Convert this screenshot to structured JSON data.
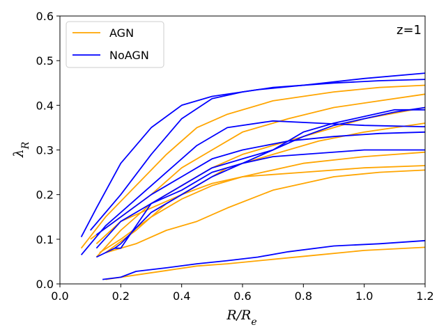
{
  "chart_data": {
    "type": "line",
    "title": "",
    "xlabel": "R/R_e",
    "ylabel": "λ_R",
    "xlim": [
      0.0,
      1.2
    ],
    "ylim": [
      0.0,
      0.6
    ],
    "xticks": [
      0.0,
      0.2,
      0.4,
      0.6,
      0.8,
      1.0,
      1.2
    ],
    "yticks": [
      0.0,
      0.1,
      0.2,
      0.3,
      0.4,
      0.5,
      0.6
    ],
    "xtick_labels": [
      "0.0",
      "0.2",
      "0.4",
      "0.6",
      "0.8",
      "1.0",
      "1.2"
    ],
    "ytick_labels": [
      "0.0",
      "0.1",
      "0.2",
      "0.3",
      "0.4",
      "0.5",
      "0.6"
    ],
    "annotation": "z=1",
    "legend": [
      {
        "label": "AGN",
        "color": "#FFA500"
      },
      {
        "label": "NoAGN",
        "color": "#0000FF"
      }
    ],
    "series": [
      {
        "name": "AGN",
        "color": "#FFA500",
        "x": [
          0.07,
          0.15,
          0.25,
          0.35,
          0.45,
          0.55,
          0.7,
          0.9,
          1.05,
          1.2
        ],
        "y": [
          0.08,
          0.15,
          0.22,
          0.29,
          0.35,
          0.38,
          0.41,
          0.43,
          0.44,
          0.445
        ]
      },
      {
        "name": "AGN",
        "color": "#FFA500",
        "x": [
          0.1,
          0.2,
          0.3,
          0.4,
          0.5,
          0.6,
          0.75,
          0.9,
          1.05,
          1.2
        ],
        "y": [
          0.1,
          0.15,
          0.2,
          0.26,
          0.3,
          0.34,
          0.37,
          0.395,
          0.41,
          0.425
        ]
      },
      {
        "name": "AGN",
        "color": "#FFA500",
        "x": [
          0.12,
          0.2,
          0.3,
          0.4,
          0.5,
          0.6,
          0.8,
          1.0,
          1.2
        ],
        "y": [
          0.06,
          0.12,
          0.18,
          0.22,
          0.26,
          0.29,
          0.33,
          0.37,
          0.395
        ]
      },
      {
        "name": "AGN",
        "color": "#FFA500",
        "x": [
          0.15,
          0.25,
          0.35,
          0.45,
          0.55,
          0.7,
          0.85,
          1.0,
          1.2
        ],
        "y": [
          0.07,
          0.12,
          0.18,
          0.22,
          0.26,
          0.29,
          0.32,
          0.34,
          0.36
        ]
      },
      {
        "name": "AGN",
        "color": "#FFA500",
        "x": [
          0.13,
          0.2,
          0.3,
          0.4,
          0.5,
          0.6,
          0.8,
          1.0,
          1.2
        ],
        "y": [
          0.07,
          0.1,
          0.15,
          0.19,
          0.22,
          0.24,
          0.27,
          0.285,
          0.295
        ]
      },
      {
        "name": "AGN",
        "color": "#FFA500",
        "x": [
          0.15,
          0.25,
          0.35,
          0.45,
          0.55,
          0.7,
          0.9,
          1.05,
          1.2
        ],
        "y": [
          0.07,
          0.09,
          0.12,
          0.14,
          0.17,
          0.21,
          0.24,
          0.25,
          0.255
        ]
      },
      {
        "name": "AGN",
        "color": "#FFA500",
        "x": [
          0.12,
          0.2,
          0.3,
          0.4,
          0.5,
          0.6,
          0.8,
          1.0,
          1.2
        ],
        "y": [
          0.09,
          0.14,
          0.17,
          0.2,
          0.225,
          0.24,
          0.25,
          0.26,
          0.265
        ]
      },
      {
        "name": "AGN",
        "color": "#FFA500",
        "x": [
          0.15,
          0.25,
          0.35,
          0.45,
          0.55,
          0.7,
          0.85,
          1.0,
          1.2
        ],
        "y": [
          0.01,
          0.02,
          0.03,
          0.04,
          0.045,
          0.055,
          0.065,
          0.075,
          0.082
        ]
      },
      {
        "name": "NoAGN",
        "color": "#0000FF",
        "x": [
          0.07,
          0.12,
          0.2,
          0.3,
          0.4,
          0.5,
          0.65,
          0.8,
          1.0,
          1.2
        ],
        "y": [
          0.105,
          0.17,
          0.27,
          0.35,
          0.4,
          0.42,
          0.435,
          0.445,
          0.46,
          0.472
        ]
      },
      {
        "name": "NoAGN",
        "color": "#0000FF",
        "x": [
          0.1,
          0.2,
          0.3,
          0.4,
          0.5,
          0.6,
          0.7,
          0.9,
          1.05,
          1.2
        ],
        "y": [
          0.12,
          0.2,
          0.29,
          0.37,
          0.415,
          0.43,
          0.44,
          0.45,
          0.455,
          0.458
        ]
      },
      {
        "name": "NoAGN",
        "color": "#0000FF",
        "x": [
          0.07,
          0.15,
          0.25,
          0.35,
          0.45,
          0.55,
          0.7,
          0.85,
          1.0,
          1.2
        ],
        "y": [
          0.065,
          0.13,
          0.19,
          0.25,
          0.31,
          0.35,
          0.365,
          0.36,
          0.355,
          0.352
        ]
      },
      {
        "name": "NoAGN",
        "color": "#0000FF",
        "x": [
          0.12,
          0.2,
          0.3,
          0.4,
          0.5,
          0.6,
          0.75,
          0.9,
          1.05,
          1.2
        ],
        "y": [
          0.11,
          0.15,
          0.2,
          0.24,
          0.28,
          0.3,
          0.32,
          0.33,
          0.337,
          0.34
        ]
      },
      {
        "name": "NoAGN",
        "color": "#0000FF",
        "x": [
          0.12,
          0.2,
          0.3,
          0.4,
          0.5,
          0.6,
          0.7,
          0.8,
          1.0,
          1.2
        ],
        "y": [
          0.08,
          0.14,
          0.18,
          0.21,
          0.25,
          0.27,
          0.285,
          0.29,
          0.3,
          0.3
        ]
      },
      {
        "name": "NoAGN",
        "color": "#0000FF",
        "x": [
          0.12,
          0.18,
          0.2,
          0.3,
          0.4,
          0.5,
          0.6,
          0.7,
          0.8,
          0.9,
          1.0,
          1.1,
          1.2
        ],
        "y": [
          0.06,
          0.08,
          0.08,
          0.18,
          0.22,
          0.26,
          0.28,
          0.3,
          0.34,
          0.36,
          0.375,
          0.39,
          0.39
        ]
      },
      {
        "name": "NoAGN",
        "color": "#0000FF",
        "x": [
          0.18,
          0.2,
          0.3,
          0.4,
          0.5,
          0.6,
          0.7,
          0.8,
          0.9,
          1.0,
          1.1,
          1.2
        ],
        "y": [
          0.08,
          0.09,
          0.16,
          0.2,
          0.24,
          0.27,
          0.3,
          0.33,
          0.355,
          0.37,
          0.385,
          0.395
        ]
      },
      {
        "name": "NoAGN",
        "color": "#0000FF",
        "x": [
          0.14,
          0.2,
          0.25,
          0.35,
          0.45,
          0.55,
          0.65,
          0.75,
          0.9,
          1.05,
          1.2
        ],
        "y": [
          0.01,
          0.015,
          0.028,
          0.036,
          0.045,
          0.052,
          0.06,
          0.072,
          0.085,
          0.09,
          0.097
        ]
      }
    ]
  }
}
